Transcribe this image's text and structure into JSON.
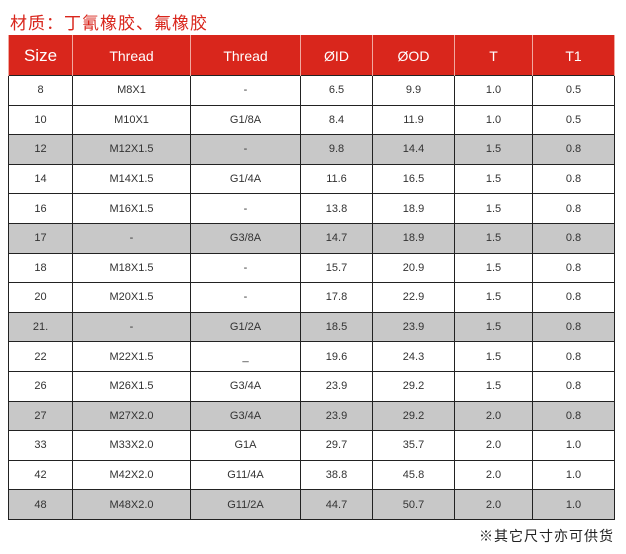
{
  "title": "材质：丁氰橡胶、氟橡胶",
  "headers": [
    "Size",
    "Thread",
    "Thread",
    "ØID",
    "ØOD",
    "T",
    "T1"
  ],
  "rows": [
    {
      "cells": [
        "8",
        "M8X1",
        "-",
        "6.5",
        "9.9",
        "1.0",
        "0.5"
      ],
      "shaded": false
    },
    {
      "cells": [
        "10",
        "M10X1",
        "G1/8A",
        "8.4",
        "11.9",
        "1.0",
        "0.5"
      ],
      "shaded": false
    },
    {
      "cells": [
        "12",
        "M12X1.5",
        "-",
        "9.8",
        "14.4",
        "1.5",
        "0.8"
      ],
      "shaded": true
    },
    {
      "cells": [
        "14",
        "M14X1.5",
        "G1/4A",
        "11.6",
        "16.5",
        "1.5",
        "0.8"
      ],
      "shaded": false
    },
    {
      "cells": [
        "16",
        "M16X1.5",
        "-",
        "13.8",
        "18.9",
        "1.5",
        "0.8"
      ],
      "shaded": false
    },
    {
      "cells": [
        "17",
        "-",
        "G3/8A",
        "14.7",
        "18.9",
        "1.5",
        "0.8"
      ],
      "shaded": true
    },
    {
      "cells": [
        "18",
        "M18X1.5",
        "-",
        "15.7",
        "20.9",
        "1.5",
        "0.8"
      ],
      "shaded": false
    },
    {
      "cells": [
        "20",
        "M20X1.5",
        "-",
        "17.8",
        "22.9",
        "1.5",
        "0.8"
      ],
      "shaded": false
    },
    {
      "cells": [
        "21.",
        "-",
        "G1/2A",
        "18.5",
        "23.9",
        "1.5",
        "0.8"
      ],
      "shaded": true
    },
    {
      "cells": [
        "22",
        "M22X1.5",
        "_",
        "19.6",
        "24.3",
        "1.5",
        "0.8"
      ],
      "shaded": false
    },
    {
      "cells": [
        "26",
        "M26X1.5",
        "G3/4A",
        "23.9",
        "29.2",
        "1.5",
        "0.8"
      ],
      "shaded": false
    },
    {
      "cells": [
        "27",
        "M27X2.0",
        "G3/4A",
        "23.9",
        "29.2",
        "2.0",
        "0.8"
      ],
      "shaded": true
    },
    {
      "cells": [
        "33",
        "M33X2.0",
        "G1A",
        "29.7",
        "35.7",
        "2.0",
        "1.0"
      ],
      "shaded": false
    },
    {
      "cells": [
        "42",
        "M42X2.0",
        "G11/4A",
        "38.8",
        "45.8",
        "2.0",
        "1.0"
      ],
      "shaded": false
    },
    {
      "cells": [
        "48",
        "M48X2.0",
        "G11/2A",
        "44.7",
        "50.7",
        "2.0",
        "1.0"
      ],
      "shaded": true
    }
  ],
  "note": "※其它尺寸亦可供货",
  "colors": {
    "header": "#d9261c",
    "shaded_row": "#c8c8c8"
  }
}
